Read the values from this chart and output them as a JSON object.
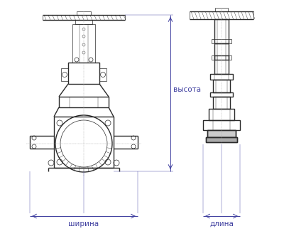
{
  "bg_color": "#ffffff",
  "line_color": "#2a2a2a",
  "dim_color": "#4040a0",
  "text_color": "#4040a0",
  "label_shirina": "ширина",
  "label_dlina": "длина",
  "label_vysota": "высота",
  "fig_width": 4.0,
  "fig_height": 3.46,
  "dpi": 100
}
